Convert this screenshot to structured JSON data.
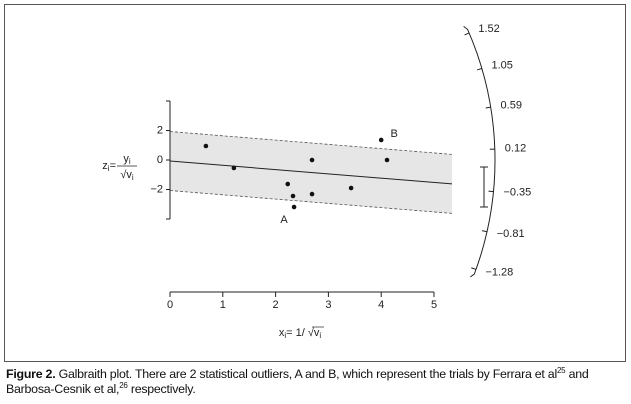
{
  "chart_data": {
    "type": "scatter",
    "x": [
      0.68,
      1.21,
      2.23,
      2.33,
      2.35,
      2.69,
      2.69,
      3.43,
      4.0,
      4.11
    ],
    "values": [
      0.95,
      -0.54,
      -1.63,
      -2.44,
      -3.19,
      0,
      -2.31,
      -1.9,
      1.36,
      0
    ],
    "xlim": [
      0,
      5
    ],
    "xticks": [
      0,
      1,
      2,
      3,
      4,
      5
    ],
    "ylim": [
      -4,
      4
    ],
    "yticks": [
      {
        "value": 2,
        "label": "2"
      },
      {
        "value": 0,
        "label": "0"
      },
      {
        "value": -2,
        "label": "−2"
      }
    ],
    "fit": {
      "intercept": -0.07,
      "slope": -0.29,
      "band": 2,
      "range": [
        0,
        5.34
      ]
    },
    "rticks": [
      {
        "value": 1.52,
        "label": "1.52"
      },
      {
        "value": 1.05,
        "label": "1.05"
      },
      {
        "value": 0.59,
        "label": "0.59"
      },
      {
        "value": 0.12,
        "label": "0.12"
      },
      {
        "value": -0.35,
        "label": "−0.35"
      },
      {
        "value": -0.81,
        "label": "−0.81"
      },
      {
        "value": -1.28,
        "label": "−1.28"
      }
    ],
    "annotations": [
      {
        "text": "A",
        "point": 4
      },
      {
        "text": "B",
        "point": 8
      }
    ],
    "ylabel": {
      "lhs": "z",
      "lhs_sub": "i",
      "eq": "=",
      "num": "y",
      "num_sub": "i",
      "den": "√v",
      "den_sub": "i"
    },
    "xlabel": {
      "lhs": "x",
      "lhs_sub": "i",
      "rhs": "= 1/ √v",
      "rhs_sub": "i"
    },
    "color": "#111111",
    "band_color": "#e6e6e6"
  },
  "caption": {
    "label": "Figure 2.",
    "text1": " Galbraith plot. There are 2 statistical outliers, A and B, which represent the trials by Ferrara et al",
    "sup1": "25",
    "text2": " and Barbosa-Cesnik et al,",
    "sup2": "26",
    "text3": " respectively."
  }
}
